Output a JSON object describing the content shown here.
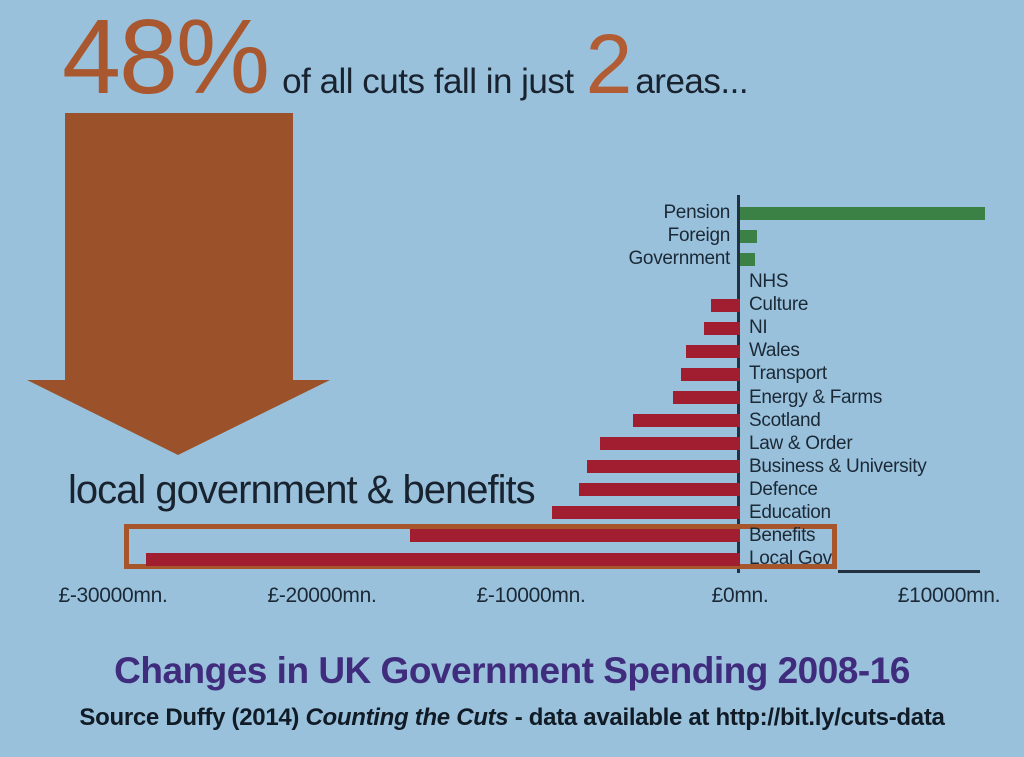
{
  "headline": {
    "stat": "48%",
    "text": "of all cuts fall in just",
    "count": "2",
    "suffix": "areas..."
  },
  "arrow_label": "local government & benefits",
  "chart_data": {
    "type": "bar",
    "orientation": "horizontal",
    "unit": "£mn",
    "categories": [
      "Pension",
      "Foreign",
      "Government",
      "NHS",
      "Culture",
      "NI",
      "Wales",
      "Transport",
      "Energy & Farms",
      "Scotland",
      "Law & Order",
      "Business & University",
      "Defence",
      "Education",
      "Benefits",
      "Local Gov"
    ],
    "values": [
      11700,
      800,
      700,
      0,
      -1400,
      -1700,
      -2600,
      -2800,
      -3200,
      -5100,
      -6700,
      -7300,
      -7700,
      -9000,
      -15800,
      -28400
    ],
    "x_ticks": [
      "£-30000mn.",
      "£-20000mn.",
      "£-10000mn.",
      "£0mn.",
      "£10000mn."
    ],
    "x_tick_values": [
      -30000,
      -20000,
      -10000,
      0,
      10000
    ],
    "xlim": [
      -30000,
      11800
    ],
    "grid": false,
    "legend": "none",
    "positive_color": "#3b8045",
    "negative_color": "#a11d30",
    "highlight": {
      "categories": [
        "Benefits",
        "Local Gov"
      ],
      "border_color": "#a7562c"
    }
  },
  "title": "Changes in UK Government Spending 2008-16",
  "source": {
    "prefix": "Source Duffy (2014) ",
    "italic": "Counting the Cuts",
    "suffix": " - data available at http://bit.ly/cuts-data"
  },
  "colors": {
    "background": "#9ac1dc",
    "accent_sienna": "#a9572e",
    "arrow": "#9b5129",
    "bar_positive": "#3b8045",
    "bar_negative": "#a11d30",
    "axis": "#223140",
    "text_dark": "#1b2936",
    "title_purple": "#3f2c7d"
  }
}
